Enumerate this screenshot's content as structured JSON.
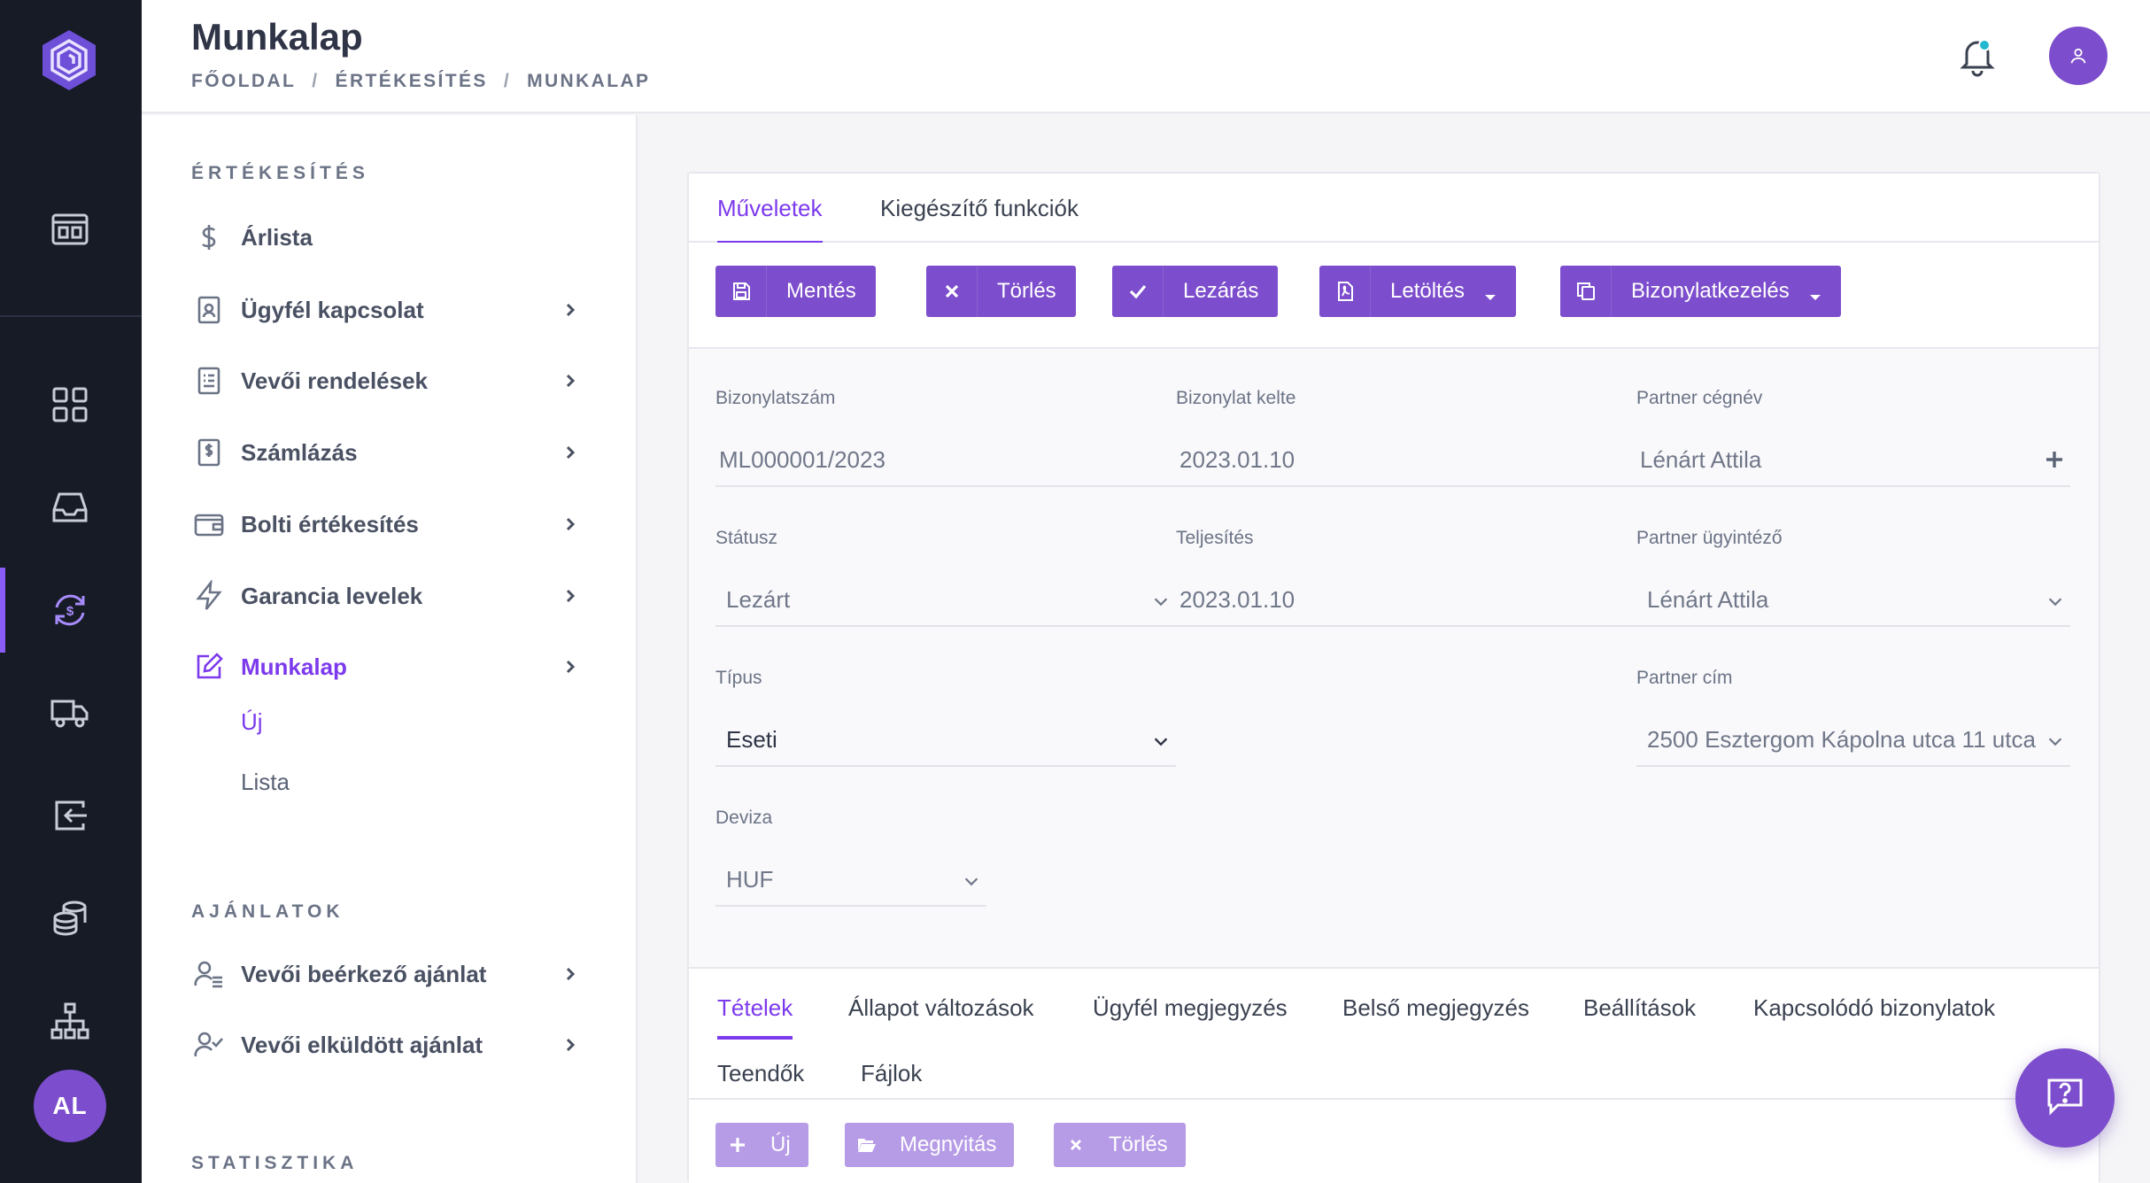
{
  "app": {
    "title": "Munkalap"
  },
  "header": {
    "title": "Munkalap",
    "breadcrumb": [
      "FŐOLDAL",
      "ÉRTÉKESÍTÉS",
      "MUNKALAP"
    ]
  },
  "rail": {
    "avatar_initials": "AL",
    "icons": [
      "logo-icon",
      "layout-icon",
      "dashboard-grid-icon",
      "inbox-icon",
      "currency-exchange-icon",
      "truck-icon",
      "wallet-import-icon",
      "coins-stack-icon",
      "sitemap-icon"
    ]
  },
  "submenu": {
    "sections": [
      {
        "title": "ÉRTÉKESÍTÉS",
        "items": [
          {
            "label": "Árlista",
            "icon": "dollar-icon",
            "chevron": false
          },
          {
            "label": "Ügyfél kapcsolat",
            "icon": "contact-document-icon",
            "chevron": true
          },
          {
            "label": "Vevői rendelések",
            "icon": "order-list-icon",
            "chevron": true
          },
          {
            "label": "Számlázás",
            "icon": "invoice-icon",
            "chevron": true
          },
          {
            "label": "Bolti értékesítés",
            "icon": "wallet-icon",
            "chevron": true
          },
          {
            "label": "Garancia levelek",
            "icon": "lightning-icon",
            "chevron": true
          },
          {
            "label": "Munkalap",
            "icon": "edit-icon",
            "chevron": true,
            "active": true
          }
        ],
        "subitems": [
          {
            "label": "Új",
            "active": true
          },
          {
            "label": "Lista",
            "active": false
          }
        ]
      },
      {
        "title": "AJÁNLATOK",
        "items": [
          {
            "label": "Vevői beérkező ajánlat",
            "icon": "user-list-icon",
            "chevron": true
          },
          {
            "label": "Vevői elküldött ajánlat",
            "icon": "user-check-icon",
            "chevron": true
          }
        ]
      },
      {
        "title": "STATISZTIKA",
        "items": []
      }
    ]
  },
  "main": {
    "tabs": [
      {
        "label": "Műveletek",
        "active": true
      },
      {
        "label": "Kiegészítő funkciók",
        "active": false
      }
    ],
    "toolbar": {
      "buttons": [
        {
          "label": "Mentés",
          "icon": "save-icon",
          "dropdown": false
        },
        {
          "label": "Törlés",
          "icon": "close-icon",
          "dropdown": false
        },
        {
          "label": "Lezárás",
          "icon": "check-icon",
          "dropdown": false
        },
        {
          "label": "Letöltés",
          "icon": "pdf-icon",
          "dropdown": true
        },
        {
          "label": "Bizonylatkezelés",
          "icon": "copy-icon",
          "dropdown": true
        }
      ]
    },
    "form": {
      "bizonylatszam": {
        "label": "Bizonylatszám",
        "value": "ML000001/2023"
      },
      "bizonylat_kelte": {
        "label": "Bizonylat kelte",
        "value": "2023.01.10"
      },
      "partner_cegnev": {
        "label": "Partner cégnév",
        "value": "Lénárt Attila"
      },
      "statusz": {
        "label": "Státusz",
        "value": "Lezárt"
      },
      "teljesites": {
        "label": "Teljesítés",
        "value": "2023.01.10"
      },
      "partner_ugyintezo": {
        "label": "Partner ügyintéző",
        "value": "Lénárt Attila"
      },
      "tipus": {
        "label": "Típus",
        "value": "Eseti"
      },
      "partner_cim": {
        "label": "Partner cím",
        "value": "2500 Esztergom Kápolna utca 11 utca"
      },
      "deviza": {
        "label": "Deviza",
        "value": "HUF"
      }
    },
    "bottom_tabs": [
      {
        "label": "Tételek",
        "active": true
      },
      {
        "label": "Állapot változások",
        "active": false
      },
      {
        "label": "Ügyfél megjegyzés",
        "active": false
      },
      {
        "label": "Belső megjegyzés",
        "active": false
      },
      {
        "label": "Beállítások",
        "active": false
      },
      {
        "label": "Kapcsolódó bizonylatok",
        "active": false
      },
      {
        "label": "Teendők",
        "active": false
      },
      {
        "label": "Fájlok",
        "active": false
      }
    ],
    "bottom_toolbar": {
      "buttons": [
        {
          "label": "Új",
          "icon": "plus-icon"
        },
        {
          "label": "Megnyitás",
          "icon": "folder-open-icon"
        },
        {
          "label": "Törlés",
          "icon": "close-icon"
        }
      ]
    }
  },
  "colors": {
    "accent": "#7c3aed",
    "button": "#7c4dcc",
    "button_disabled": "#b69be6",
    "rail_bg": "#161b26",
    "notification_dot": "#22b8cf"
  }
}
